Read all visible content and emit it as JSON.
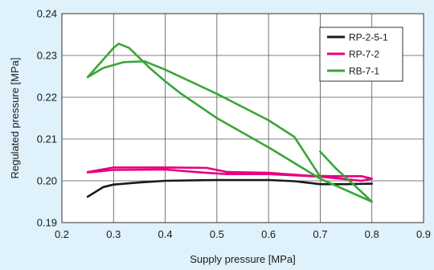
{
  "chart_data": {
    "type": "line",
    "title": "",
    "xlabel": "Supply pressure [MPa]",
    "ylabel": "Regulated pressure [MPa]",
    "xlim": [
      0.2,
      0.9
    ],
    "ylim": [
      0.19,
      0.24
    ],
    "x_ticks": [
      0.2,
      0.3,
      0.4,
      0.5,
      0.6,
      0.7,
      0.8,
      0.9
    ],
    "y_ticks": [
      0.19,
      0.2,
      0.21,
      0.22,
      0.23,
      0.24
    ],
    "x_tick_labels": [
      "0.2",
      "0.3",
      "0.4",
      "0.5",
      "0.6",
      "0.7",
      "0.8",
      "0.9"
    ],
    "y_tick_labels": [
      "0.19",
      "0.20",
      "0.21",
      "0.22",
      "0.23",
      "0.24"
    ],
    "grid": true,
    "legend_position": "top-right",
    "background_color": "#dff1fa",
    "plot_background_color": "#ffffff",
    "series": [
      {
        "name": "RP-2-5-1",
        "color": "#1a1a1a",
        "points": [
          [
            0.25,
            0.1962
          ],
          [
            0.28,
            0.1985
          ],
          [
            0.3,
            0.1991
          ],
          [
            0.35,
            0.1996
          ],
          [
            0.4,
            0.2
          ],
          [
            0.5,
            0.2002
          ],
          [
            0.6,
            0.2002
          ],
          [
            0.65,
            0.1999
          ],
          [
            0.7,
            0.1992
          ],
          [
            0.75,
            0.1992
          ],
          [
            0.8,
            0.1993
          ]
        ]
      },
      {
        "name": "RP-7-2",
        "color": "#e6007e",
        "points": [
          [
            0.25,
            0.2021
          ],
          [
            0.3,
            0.2032
          ],
          [
            0.4,
            0.2032
          ],
          [
            0.48,
            0.2031
          ],
          [
            0.52,
            0.2021
          ],
          [
            0.6,
            0.2019
          ],
          [
            0.68,
            0.2012
          ],
          [
            0.73,
            0.2011
          ],
          [
            0.78,
            0.2011
          ],
          [
            0.8,
            0.2005
          ],
          [
            0.78,
            0.2
          ],
          [
            0.7,
            0.201
          ],
          [
            0.6,
            0.2016
          ],
          [
            0.52,
            0.2016
          ],
          [
            0.48,
            0.2019
          ],
          [
            0.4,
            0.2027
          ],
          [
            0.3,
            0.2026
          ],
          [
            0.25,
            0.202
          ]
        ]
      },
      {
        "name": "RB-7-1",
        "color": "#3aa636",
        "points": [
          [
            0.25,
            0.2248
          ],
          [
            0.28,
            0.229
          ],
          [
            0.3,
            0.2318
          ],
          [
            0.31,
            0.2328
          ],
          [
            0.33,
            0.2318
          ],
          [
            0.37,
            0.227
          ],
          [
            0.4,
            0.2238
          ],
          [
            0.43,
            0.2209
          ],
          [
            0.5,
            0.215
          ],
          [
            0.6,
            0.208
          ],
          [
            0.7,
            0.2005
          ],
          [
            0.8,
            0.195
          ],
          [
            0.77,
            0.1985
          ],
          [
            0.73,
            0.203
          ],
          [
            0.7,
            0.207
          ]
        ],
        "points_segment_2": [
          [
            0.25,
            0.2248
          ],
          [
            0.28,
            0.227
          ],
          [
            0.32,
            0.2284
          ],
          [
            0.36,
            0.2286
          ],
          [
            0.4,
            0.2266
          ],
          [
            0.5,
            0.2208
          ],
          [
            0.6,
            0.2145
          ],
          [
            0.65,
            0.2105
          ],
          [
            0.7,
            0.201
          ]
        ]
      }
    ]
  }
}
